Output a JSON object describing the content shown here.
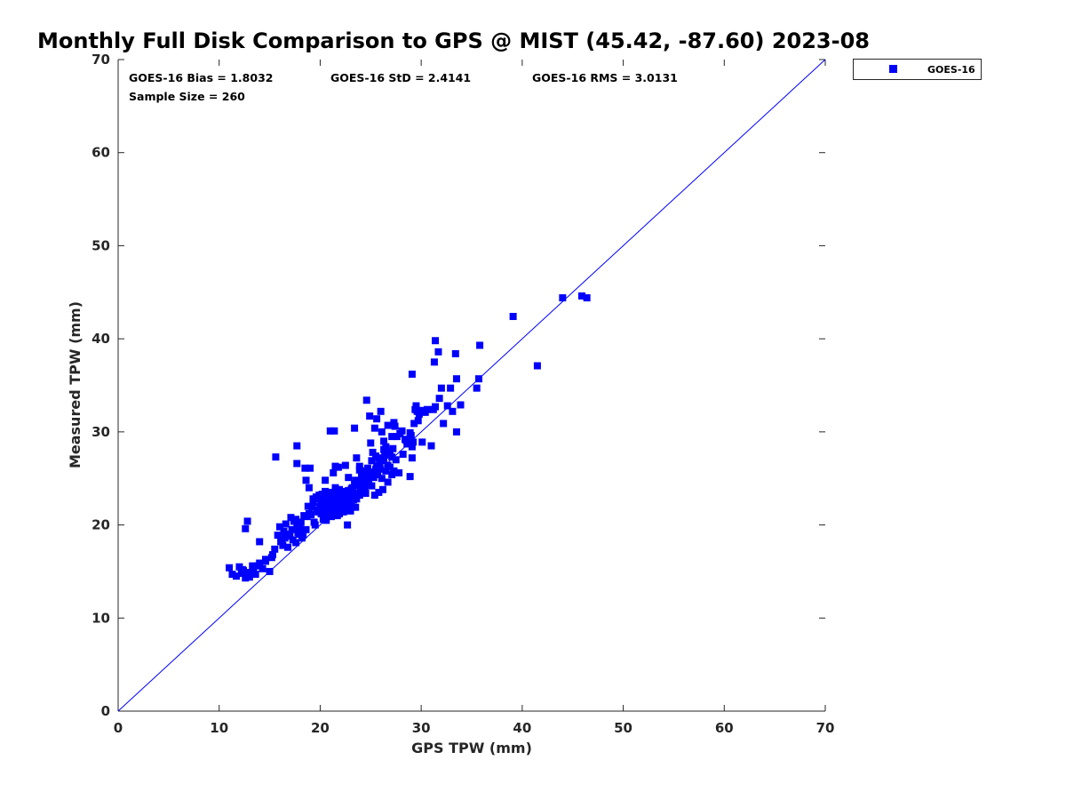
{
  "chart_data": {
    "type": "scatter",
    "title": "Monthly Full Disk Comparison to GPS @ MIST (45.42, -87.60) 2023-08",
    "xlabel": "GPS TPW (mm)",
    "ylabel": "Measured TPW (mm)",
    "xlim": [
      0,
      70
    ],
    "ylim": [
      0,
      70
    ],
    "x_ticks": [
      "0",
      "10",
      "20",
      "30",
      "40",
      "50",
      "60",
      "70"
    ],
    "y_ticks": [
      "0",
      "10",
      "20",
      "30",
      "40",
      "50",
      "60",
      "70"
    ],
    "grid": false,
    "legend_position": "outside-top-right",
    "stats": {
      "bias": "GOES-16 Bias = 1.8032",
      "std": "GOES-16 StD = 2.4141",
      "rms": "GOES-16 RMS = 3.0131",
      "sample": "Sample Size = 260"
    },
    "reference_line": {
      "from": [
        0,
        0
      ],
      "to": [
        70,
        70
      ],
      "color": "#0000ff"
    },
    "series": [
      {
        "name": "GOES-16",
        "color": "#0000ff",
        "marker": "square",
        "points": [
          [
            11.0,
            15.4
          ],
          [
            11.3,
            14.7
          ],
          [
            11.7,
            14.5
          ],
          [
            12.0,
            15.5
          ],
          [
            12.2,
            14.8
          ],
          [
            12.4,
            15.1
          ],
          [
            12.6,
            14.3
          ],
          [
            12.8,
            14.9
          ],
          [
            13.0,
            14.4
          ],
          [
            13.3,
            15.6
          ],
          [
            13.6,
            14.7
          ],
          [
            14.0,
            15.9
          ],
          [
            14.3,
            15.3
          ],
          [
            14.6,
            16.1
          ],
          [
            15.0,
            15.0
          ],
          [
            15.2,
            16.5
          ],
          [
            12.6,
            19.6
          ],
          [
            12.8,
            20.4
          ],
          [
            14.0,
            18.2
          ],
          [
            15.5,
            17.4
          ],
          [
            15.8,
            18.9
          ],
          [
            16.0,
            19.8
          ],
          [
            16.2,
            18.4
          ],
          [
            16.4,
            19.3
          ],
          [
            16.6,
            20.1
          ],
          [
            16.8,
            17.6
          ],
          [
            17.0,
            18.8
          ],
          [
            17.2,
            19.5
          ],
          [
            17.4,
            20.4
          ],
          [
            17.6,
            18.1
          ],
          [
            17.8,
            19.2
          ],
          [
            18.0,
            20.0
          ],
          [
            18.2,
            18.6
          ],
          [
            18.4,
            21.0
          ],
          [
            18.6,
            19.5
          ],
          [
            18.8,
            22.0
          ],
          [
            16.5,
            18.6
          ],
          [
            17.1,
            20.8
          ],
          [
            17.9,
            19.0
          ],
          [
            18.3,
            18.9
          ],
          [
            18.6,
            24.8
          ],
          [
            18.9,
            24.0
          ],
          [
            19.1,
            21.1
          ],
          [
            19.3,
            22.8
          ],
          [
            19.5,
            20.0
          ],
          [
            19.7,
            21.6
          ],
          [
            19.9,
            23.2
          ],
          [
            20.1,
            22.3
          ],
          [
            20.3,
            20.6
          ],
          [
            20.5,
            23.6
          ],
          [
            20.7,
            21.8
          ],
          [
            20.9,
            22.9
          ],
          [
            21.1,
            20.9
          ],
          [
            21.3,
            23.4
          ],
          [
            21.5,
            22.1
          ],
          [
            21.7,
            21.0
          ],
          [
            21.9,
            23.8
          ],
          [
            22.1,
            22.6
          ],
          [
            22.3,
            21.4
          ],
          [
            22.5,
            23.0
          ],
          [
            22.7,
            20.0
          ],
          [
            22.9,
            22.5
          ],
          [
            23.1,
            23.9
          ],
          [
            23.3,
            22.7
          ],
          [
            23.5,
            21.9
          ],
          [
            23.7,
            24.5
          ],
          [
            23.9,
            23.2
          ],
          [
            24.1,
            25.3
          ],
          [
            24.3,
            24.0
          ],
          [
            24.5,
            23.4
          ],
          [
            20.0,
            22.0
          ],
          [
            20.2,
            23.0
          ],
          [
            20.4,
            21.5
          ],
          [
            20.6,
            22.6
          ],
          [
            20.8,
            23.5
          ],
          [
            21.0,
            22.2
          ],
          [
            21.2,
            21.3
          ],
          [
            21.4,
            22.8
          ],
          [
            21.6,
            23.3
          ],
          [
            21.8,
            22.0
          ],
          [
            22.0,
            23.1
          ],
          [
            22.2,
            22.4
          ],
          [
            22.4,
            21.6
          ],
          [
            22.6,
            23.4
          ],
          [
            22.8,
            22.9
          ],
          [
            23.0,
            23.6
          ],
          [
            23.2,
            24.0
          ],
          [
            23.4,
            23.0
          ],
          [
            23.6,
            22.8
          ],
          [
            23.8,
            24.2
          ],
          [
            24.0,
            23.7
          ],
          [
            19.2,
            21.9
          ],
          [
            19.6,
            23.0
          ],
          [
            20.1,
            21.2
          ],
          [
            20.6,
            20.5
          ],
          [
            21.0,
            23.4
          ],
          [
            21.4,
            21.8
          ],
          [
            21.8,
            22.6
          ],
          [
            22.2,
            23.6
          ],
          [
            22.6,
            22.2
          ],
          [
            23.0,
            21.5
          ],
          [
            23.4,
            24.4
          ],
          [
            23.8,
            23.4
          ],
          [
            24.2,
            24.8
          ],
          [
            24.6,
            25.8
          ],
          [
            15.6,
            27.3
          ],
          [
            17.7,
            26.6
          ],
          [
            17.7,
            28.5
          ],
          [
            18.5,
            26.1
          ],
          [
            19.0,
            26.1
          ],
          [
            20.5,
            24.8
          ],
          [
            21.0,
            30.1
          ],
          [
            21.4,
            30.1
          ],
          [
            21.3,
            25.6
          ],
          [
            21.5,
            26.3
          ],
          [
            21.8,
            26.2
          ],
          [
            22.5,
            26.4
          ],
          [
            22.8,
            25.1
          ],
          [
            23.4,
            30.4
          ],
          [
            23.6,
            27.2
          ],
          [
            23.9,
            26.3
          ],
          [
            24.3,
            25.6
          ],
          [
            24.6,
            33.4
          ],
          [
            24.9,
            31.7
          ],
          [
            25.0,
            28.8
          ],
          [
            25.2,
            27.8
          ],
          [
            25.4,
            30.4
          ],
          [
            25.6,
            31.4
          ],
          [
            25.8,
            27.2
          ],
          [
            26.0,
            32.2
          ],
          [
            26.1,
            30.0
          ],
          [
            26.3,
            29.0
          ],
          [
            26.5,
            28.4
          ],
          [
            26.7,
            30.7
          ],
          [
            26.9,
            27.8
          ],
          [
            27.1,
            29.5
          ],
          [
            27.3,
            31.0
          ],
          [
            27.4,
            30.6
          ],
          [
            25.1,
            24.2
          ],
          [
            25.3,
            25.1
          ],
          [
            25.5,
            26.0
          ],
          [
            25.7,
            25.4
          ],
          [
            25.9,
            26.6
          ],
          [
            26.1,
            25.0
          ],
          [
            26.3,
            26.9
          ],
          [
            26.5,
            25.8
          ],
          [
            26.7,
            24.6
          ],
          [
            26.9,
            26.2
          ],
          [
            27.1,
            25.4
          ],
          [
            27.3,
            25.8
          ],
          [
            27.5,
            27.0
          ],
          [
            24.8,
            24.6
          ],
          [
            25.4,
            23.2
          ],
          [
            25.8,
            23.5
          ],
          [
            26.2,
            23.8
          ],
          [
            27.6,
            29.5
          ],
          [
            27.9,
            29.8
          ],
          [
            28.1,
            30.1
          ],
          [
            28.4,
            29.2
          ],
          [
            28.6,
            28.7
          ],
          [
            28.9,
            29.9
          ],
          [
            29.1,
            28.4
          ],
          [
            29.2,
            28.9
          ],
          [
            29.3,
            30.9
          ],
          [
            29.4,
            32.4
          ],
          [
            29.5,
            32.8
          ],
          [
            29.6,
            32.2
          ],
          [
            29.8,
            31.9
          ],
          [
            30.0,
            32.3
          ],
          [
            30.1,
            28.9
          ],
          [
            30.4,
            32.1
          ],
          [
            30.6,
            32.4
          ],
          [
            29.1,
            36.2
          ],
          [
            28.9,
            25.2
          ],
          [
            29.1,
            27.2
          ],
          [
            28.2,
            27.6
          ],
          [
            31.0,
            28.5
          ],
          [
            31.2,
            32.4
          ],
          [
            31.4,
            32.7
          ],
          [
            31.3,
            37.5
          ],
          [
            31.4,
            39.8
          ],
          [
            31.7,
            38.6
          ],
          [
            31.8,
            33.6
          ],
          [
            32.0,
            34.7
          ],
          [
            32.2,
            30.9
          ],
          [
            32.6,
            32.8
          ],
          [
            32.9,
            34.7
          ],
          [
            33.1,
            32.2
          ],
          [
            33.4,
            38.4
          ],
          [
            33.5,
            35.7
          ],
          [
            33.5,
            30.0
          ],
          [
            33.9,
            32.9
          ],
          [
            35.5,
            34.7
          ],
          [
            35.7,
            35.7
          ],
          [
            35.8,
            39.3
          ],
          [
            39.1,
            42.4
          ],
          [
            41.5,
            37.1
          ],
          [
            44.0,
            44.4
          ],
          [
            45.9,
            44.6
          ],
          [
            46.4,
            44.4
          ],
          [
            13.4,
            15.0
          ],
          [
            14.6,
            16.3
          ],
          [
            16.3,
            17.8
          ],
          [
            17.6,
            20.6
          ],
          [
            18.1,
            19.4
          ],
          [
            18.7,
            20.9
          ],
          [
            19.4,
            20.3
          ],
          [
            19.8,
            21.4
          ],
          [
            20.3,
            21.8
          ],
          [
            20.8,
            22.4
          ],
          [
            21.2,
            22.5
          ],
          [
            21.6,
            22.9
          ],
          [
            22.0,
            21.8
          ],
          [
            22.4,
            22.9
          ],
          [
            22.8,
            23.7
          ],
          [
            23.1,
            22.1
          ],
          [
            23.5,
            23.3
          ],
          [
            23.9,
            24.7
          ],
          [
            24.4,
            24.1
          ],
          [
            24.8,
            25.2
          ],
          [
            25.2,
            25.7
          ],
          [
            25.6,
            26.4
          ],
          [
            26.0,
            26.9
          ],
          [
            26.4,
            27.5
          ],
          [
            26.8,
            27.7
          ],
          [
            27.2,
            28.2
          ],
          [
            27.8,
            25.6
          ],
          [
            28.5,
            29.1
          ],
          [
            29.0,
            29.6
          ],
          [
            29.7,
            31.2
          ],
          [
            12.3,
            15.2
          ],
          [
            12.9,
            14.6
          ],
          [
            13.8,
            15.6
          ],
          [
            15.3,
            16.8
          ],
          [
            16.1,
            18.2
          ],
          [
            16.9,
            19.0
          ],
          [
            17.3,
            18.4
          ],
          [
            17.7,
            19.9
          ],
          [
            18.1,
            20.3
          ],
          [
            18.9,
            21.2
          ],
          [
            19.3,
            22.4
          ],
          [
            19.8,
            22.8
          ],
          [
            20.2,
            23.3
          ],
          [
            20.7,
            21.0
          ],
          [
            21.1,
            21.6
          ],
          [
            21.5,
            24.0
          ],
          [
            21.9,
            21.2
          ],
          [
            22.3,
            23.3
          ],
          [
            22.7,
            22.0
          ],
          [
            23.1,
            23.0
          ],
          [
            23.5,
            24.8
          ],
          [
            23.9,
            25.9
          ],
          [
            24.3,
            25.0
          ],
          [
            24.7,
            26.1
          ],
          [
            25.1,
            26.9
          ],
          [
            25.5,
            27.4
          ],
          [
            25.9,
            26.0
          ],
          [
            26.3,
            28.1
          ],
          [
            26.7,
            26.4
          ],
          [
            27.1,
            27.3
          ]
        ]
      }
    ]
  }
}
